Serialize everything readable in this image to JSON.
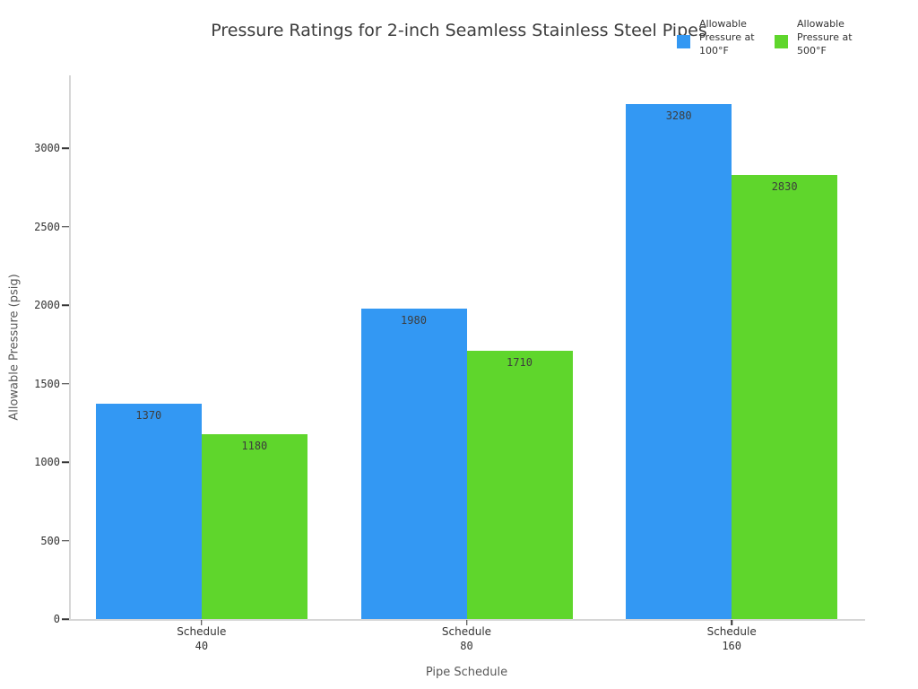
{
  "chart_data": {
    "type": "bar",
    "title": "Pressure Ratings for 2-inch Seamless Stainless Steel Pipes",
    "xlabel": "Pipe Schedule",
    "ylabel": "Allowable Pressure (psig)",
    "categories": [
      "Schedule 40",
      "Schedule 80",
      "Schedule 160"
    ],
    "category_lines": [
      [
        "Schedule",
        "40"
      ],
      [
        "Schedule",
        "80"
      ],
      [
        "Schedule",
        "160"
      ]
    ],
    "series": [
      {
        "name": "Allowable Pressure at 100°F",
        "label_lines": [
          "Allowable",
          "Pressure at",
          "100°F"
        ],
        "color": "#3398f3",
        "values": [
          1370,
          1980,
          3280
        ]
      },
      {
        "name": "Allowable Pressure at 500°F",
        "label_lines": [
          "Allowable",
          "Pressure at",
          "500°F"
        ],
        "color": "#5fd62c",
        "values": [
          1180,
          1710,
          2830
        ]
      }
    ],
    "yticks": [
      0,
      500,
      1000,
      1500,
      2000,
      2500,
      3000
    ],
    "ylim": [
      0,
      3460
    ],
    "grid": false,
    "legend_position": "top-right",
    "bar_value_labels": true
  }
}
